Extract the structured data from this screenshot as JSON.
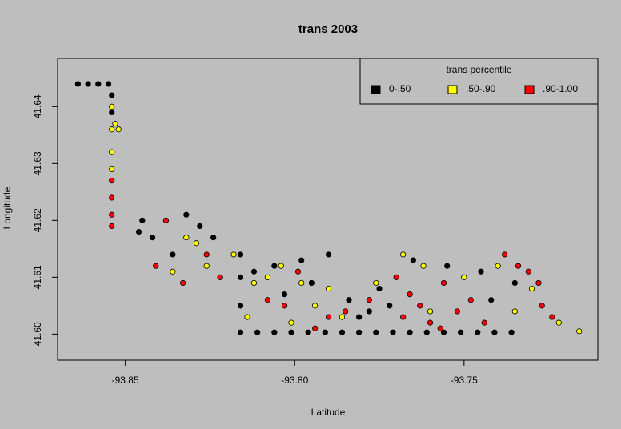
{
  "chart_data": {
    "type": "scatter",
    "title": "trans 2003",
    "x_label": "Latitude",
    "y_label": "Longitude",
    "xlim": [
      -93.87,
      -93.7105
    ],
    "ylim": [
      41.5954,
      41.6485
    ],
    "xticks": [
      -93.85,
      {
        "value": -93.8,
        "label": "-93.80"
      },
      -93.75
    ],
    "yticks": [
      {
        "value": 41.6,
        "label": "41.60"
      },
      41.61,
      41.62,
      41.63,
      41.64
    ],
    "legend_title": "trans percentile",
    "legend_position": "top-right",
    "series": [
      {
        "name": "0-.50",
        "color": "#000000",
        "x": [
          -93.864,
          -93.861,
          -93.858,
          -93.855,
          -93.854,
          -93.854,
          -93.816,
          -93.811,
          -93.806,
          -93.801,
          -93.796,
          -93.791,
          -93.786,
          -93.781,
          -93.776,
          -93.771,
          -93.766,
          -93.761,
          -93.756,
          -93.751,
          -93.746,
          -93.741,
          -93.736,
          -93.816,
          -93.816,
          -93.816,
          -93.806,
          -93.798,
          -93.79,
          -93.784,
          -93.781,
          -93.778,
          -93.775,
          -93.772,
          -93.832,
          -93.828,
          -93.824,
          -93.836,
          -93.846,
          -93.842,
          -93.845,
          -93.765,
          -93.755,
          -93.745,
          -93.735,
          -93.742,
          -93.812,
          -93.803,
          -93.795
        ],
        "values": [
          41.644,
          41.644,
          41.644,
          41.644,
          41.642,
          41.639,
          41.6003,
          41.6003,
          41.6003,
          41.6003,
          41.6003,
          41.6003,
          41.6003,
          41.6003,
          41.6003,
          41.6003,
          41.6003,
          41.6003,
          41.6003,
          41.6003,
          41.6003,
          41.6003,
          41.6003,
          41.605,
          41.61,
          41.614,
          41.612,
          41.613,
          41.614,
          41.606,
          41.603,
          41.604,
          41.608,
          41.605,
          41.621,
          41.619,
          41.617,
          41.614,
          41.618,
          41.617,
          41.62,
          41.613,
          41.612,
          41.611,
          41.609,
          41.606,
          41.611,
          41.607,
          41.609
        ]
      },
      {
        "name": ".50-.90",
        "color": "#ffff00",
        "x": [
          -93.854,
          -93.854,
          -93.854,
          -93.854,
          -93.853,
          -93.852,
          -93.832,
          -93.829,
          -93.836,
          -93.826,
          -93.818,
          -93.812,
          -93.808,
          -93.804,
          -93.798,
          -93.794,
          -93.814,
          -93.801,
          -93.79,
          -93.776,
          -93.768,
          -93.762,
          -93.75,
          -93.74,
          -93.73,
          -93.722,
          -93.716,
          -93.76,
          -93.735,
          -93.786
        ],
        "values": [
          41.64,
          41.636,
          41.632,
          41.629,
          41.637,
          41.636,
          41.617,
          41.616,
          41.611,
          41.612,
          41.614,
          41.609,
          41.61,
          41.612,
          41.609,
          41.605,
          41.603,
          41.602,
          41.608,
          41.609,
          41.614,
          41.612,
          41.61,
          41.612,
          41.608,
          41.602,
          41.6005,
          41.604,
          41.604,
          41.603
        ]
      },
      {
        "name": ".90-1.00",
        "color": "#ff0000",
        "x": [
          -93.854,
          -93.854,
          -93.854,
          -93.854,
          -93.838,
          -93.841,
          -93.833,
          -93.826,
          -93.822,
          -93.808,
          -93.803,
          -93.799,
          -93.794,
          -93.79,
          -93.785,
          -93.778,
          -93.77,
          -93.766,
          -93.763,
          -93.76,
          -93.756,
          -93.752,
          -93.748,
          -93.744,
          -93.738,
          -93.734,
          -93.731,
          -93.728,
          -93.727,
          -93.724,
          -93.768,
          -93.757
        ],
        "values": [
          41.627,
          41.624,
          41.621,
          41.619,
          41.62,
          41.612,
          41.609,
          41.614,
          41.61,
          41.606,
          41.605,
          41.611,
          41.601,
          41.603,
          41.604,
          41.606,
          41.61,
          41.607,
          41.605,
          41.602,
          41.609,
          41.604,
          41.606,
          41.602,
          41.614,
          41.612,
          41.611,
          41.609,
          41.605,
          41.603,
          41.603,
          41.601
        ]
      }
    ]
  }
}
